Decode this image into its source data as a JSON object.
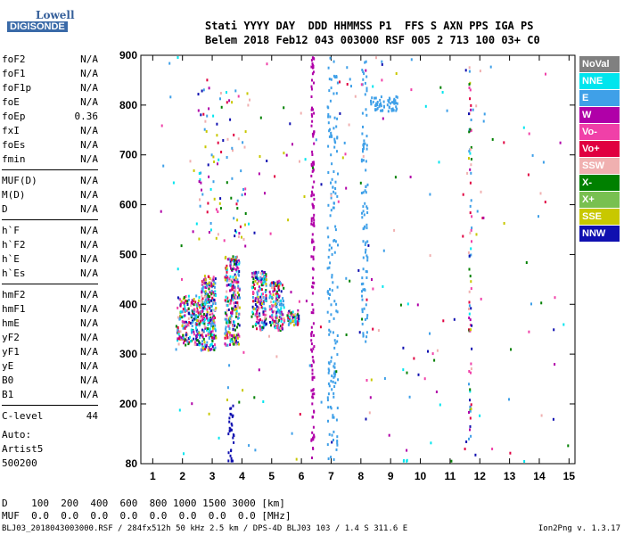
{
  "logo": {
    "line1": "Lowell",
    "line2": "DIGISONDE"
  },
  "header": {
    "labels": "Stati YYYY DAY  DDD HHMMSS P1  FFS S AXN PPS IGA PS",
    "values": "Belem 2018 Feb12 043 003000 RSF 005 2 713 100 03+ C0"
  },
  "params": [
    {
      "name": "foF2",
      "value": "N/A"
    },
    {
      "name": "foF1",
      "value": "N/A"
    },
    {
      "name": "foF1p",
      "value": "N/A"
    },
    {
      "name": "foE",
      "value": "N/A"
    },
    {
      "name": "foEp",
      "value": "0.36"
    },
    {
      "name": "fxI",
      "value": "N/A"
    },
    {
      "name": "foEs",
      "value": "N/A"
    },
    {
      "name": "fmin",
      "value": "N/A"
    },
    {
      "name": "MUF(D)",
      "value": "N/A"
    },
    {
      "name": "M(D)",
      "value": "N/A"
    },
    {
      "name": "D",
      "value": "N/A"
    },
    {
      "name": "h`F",
      "value": "N/A"
    },
    {
      "name": "h`F2",
      "value": "N/A"
    },
    {
      "name": "h`E",
      "value": "N/A"
    },
    {
      "name": "h`Es",
      "value": "N/A"
    },
    {
      "name": "hmF2",
      "value": "N/A"
    },
    {
      "name": "hmF1",
      "value": "N/A"
    },
    {
      "name": "hmE",
      "value": "N/A"
    },
    {
      "name": "yF2",
      "value": "N/A"
    },
    {
      "name": "yF1",
      "value": "N/A"
    },
    {
      "name": "yE",
      "value": "N/A"
    },
    {
      "name": "B0",
      "value": "N/A"
    },
    {
      "name": "B1",
      "value": "N/A"
    },
    {
      "name": "C-level",
      "value": "44"
    }
  ],
  "auto": {
    "line1": "Auto:",
    "line2": "Artist5",
    "line3": "500200"
  },
  "legend": [
    {
      "label": "NoVal",
      "color": "#808080"
    },
    {
      "label": "NNE",
      "color": "#00e5ee"
    },
    {
      "label": "E",
      "color": "#3fa0e8"
    },
    {
      "label": "W",
      "color": "#b000a8"
    },
    {
      "label": "Vo-",
      "color": "#f040a8"
    },
    {
      "label": "Vo+",
      "color": "#e00040"
    },
    {
      "label": "SSW",
      "color": "#f0b0b0"
    },
    {
      "label": "X-",
      "color": "#008000"
    },
    {
      "label": "X+",
      "color": "#78c050"
    },
    {
      "label": "SSE",
      "color": "#c8c800"
    },
    {
      "label": "NNW",
      "color": "#1010b0"
    }
  ],
  "table": {
    "row1": "D    100  200  400  600  800 1000 1500 3000 [km]",
    "row2": "MUF  0.0  0.0  0.0  0.0  0.0  0.0  0.0  0.0 [MHz]"
  },
  "footer": {
    "left": "BLJ03_2018043003000.RSF / 284fx512h 50 kHz 2.5 km / DPS-4D BLJ03 103 / 1.4 S 311.6 E",
    "right": "Ion2Png v. 1.3.17"
  },
  "chart_data": {
    "type": "scatter",
    "xlim": [
      0.6,
      15.2
    ],
    "ylim": [
      80,
      900
    ],
    "xticks": [
      1,
      2,
      3,
      4,
      5,
      6,
      7,
      8,
      9,
      10,
      11,
      12,
      13,
      14,
      15
    ],
    "yticks": [
      80,
      200,
      300,
      400,
      500,
      600,
      700,
      800,
      900
    ],
    "clusters": [
      {
        "x": [
          1.8,
          2.6
        ],
        "y": [
          320,
          420
        ],
        "n": 220,
        "series": "mix"
      },
      {
        "x": [
          2.6,
          3.1
        ],
        "y": [
          310,
          460
        ],
        "n": 260,
        "series": "mix"
      },
      {
        "x": [
          3.4,
          3.9
        ],
        "y": [
          320,
          500
        ],
        "n": 260,
        "series": "mix"
      },
      {
        "x": [
          4.3,
          4.8
        ],
        "y": [
          350,
          470
        ],
        "n": 180,
        "series": "mix"
      },
      {
        "x": [
          4.9,
          5.4
        ],
        "y": [
          350,
          450
        ],
        "n": 150,
        "series": "mix"
      },
      {
        "x": [
          5.5,
          5.9
        ],
        "y": [
          360,
          390
        ],
        "n": 60,
        "series": "mix"
      },
      {
        "x": [
          6.3,
          6.4
        ],
        "y": [
          90,
          900
        ],
        "n": 140,
        "series": "W"
      },
      {
        "x": [
          6.85,
          7.2
        ],
        "y": [
          90,
          900
        ],
        "n": 160,
        "series": "E"
      },
      {
        "x": [
          8.0,
          8.2
        ],
        "y": [
          320,
          890
        ],
        "n": 90,
        "series": "E"
      },
      {
        "x": [
          8.3,
          9.2
        ],
        "y": [
          790,
          820
        ],
        "n": 60,
        "series": "E"
      },
      {
        "x": [
          11.6,
          11.7
        ],
        "y": [
          130,
          890
        ],
        "n": 80,
        "series": "mix"
      },
      {
        "x": [
          3.5,
          3.7
        ],
        "y": [
          80,
          200
        ],
        "n": 30,
        "series": "NNW"
      },
      {
        "x": [
          2.5,
          4.2
        ],
        "y": [
          520,
          840
        ],
        "n": 90,
        "series": "mix"
      },
      {
        "x": [
          9.4,
          9.6
        ],
        "y": [
          80,
          90
        ],
        "n": 8,
        "series": "NNE"
      }
    ],
    "noise_points": 220
  }
}
